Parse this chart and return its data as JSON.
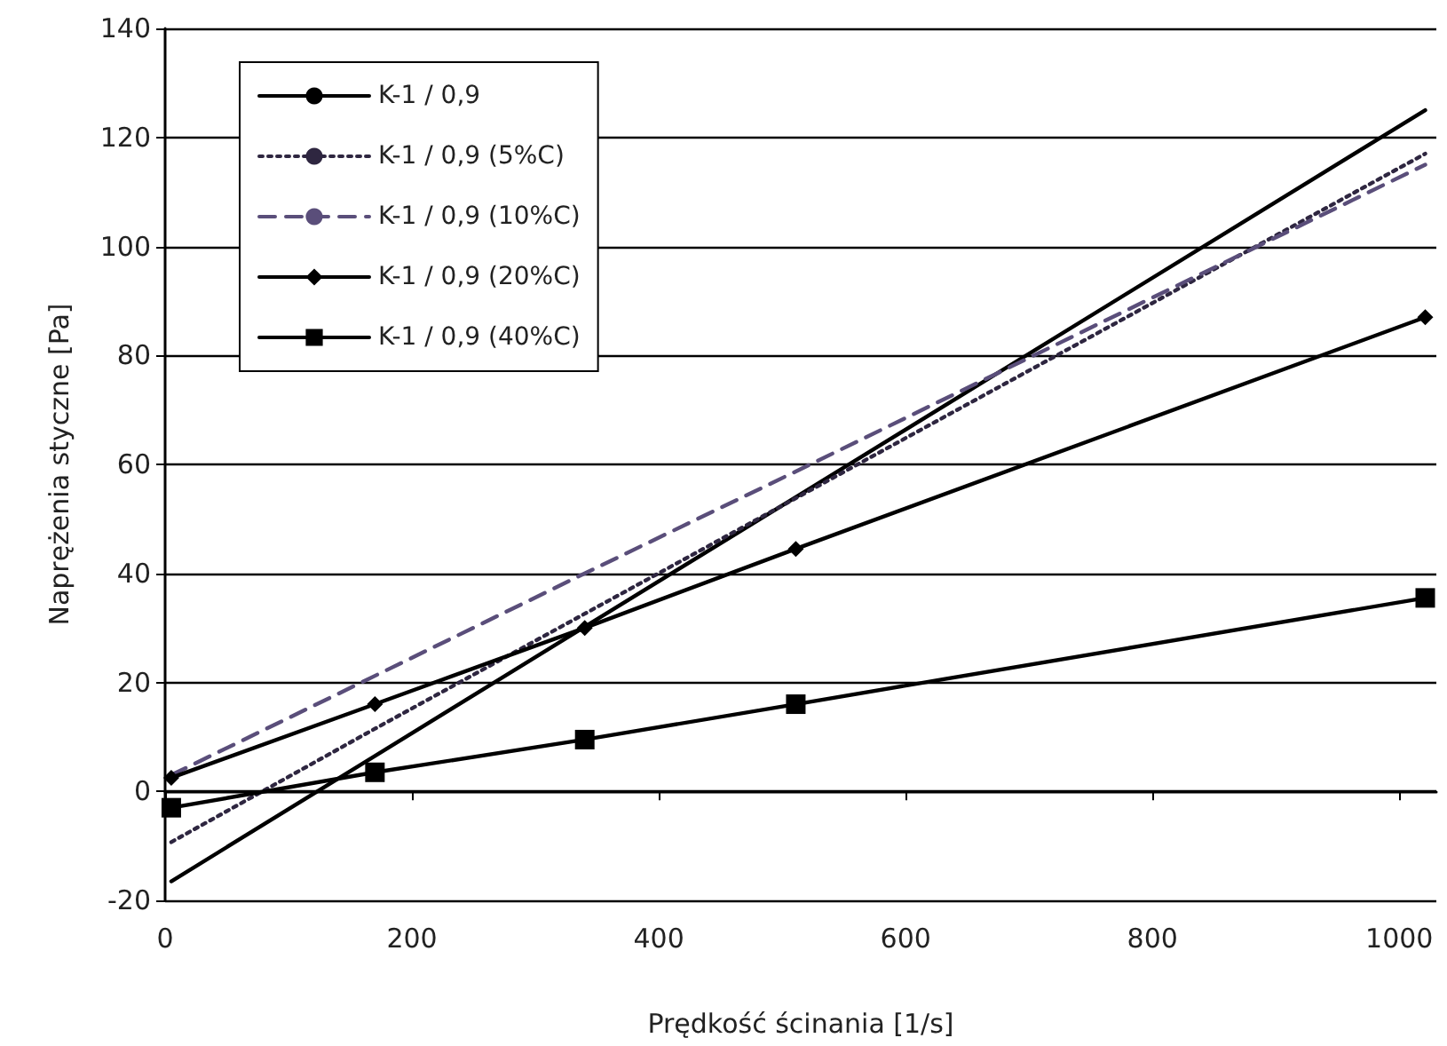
{
  "chart_data": {
    "type": "line",
    "xlabel": "Prędkość ścinania [1/s]",
    "ylabel": "Naprężenia styczne [Pa]",
    "x": [
      5,
      170,
      340,
      511,
      1021
    ],
    "series": [
      {
        "name": "K-1 / 0,9",
        "color": "#000000",
        "line_style": "solid",
        "marker": "none",
        "values": [
          -16.5,
          6.5,
          30.2,
          54,
          125
        ]
      },
      {
        "name": "K-1 / 0,9 (5%C)",
        "color": "#2e2640",
        "line_style": "dotted",
        "marker": "none",
        "values": [
          -9.3,
          11.5,
          32.6,
          53.8,
          117
        ]
      },
      {
        "name": "K-1 / 0,9 (10%C)",
        "color": "#5a4e7a",
        "line_style": "dashed",
        "marker": "none",
        "values": [
          3,
          21.2,
          40,
          58.7,
          115
        ]
      },
      {
        "name": "K-1 / 0,9 (20%C)",
        "color": "#000000",
        "line_style": "solid",
        "marker": "diamond",
        "values": [
          2.5,
          16,
          30,
          44.5,
          87
        ]
      },
      {
        "name": "K-1 / 0,9 (40%C)",
        "color": "#000000",
        "line_style": "solid",
        "marker": "square",
        "values": [
          -3,
          3.5,
          9.5,
          16,
          35.5
        ]
      }
    ],
    "xlim": [
      0,
      1030
    ],
    "xticks": [
      0,
      200,
      400,
      600,
      800,
      1000
    ],
    "ylim": [
      -20,
      140
    ],
    "yticks": [
      -20,
      0,
      20,
      40,
      60,
      80,
      100,
      120,
      140
    ],
    "grid": "y",
    "legend": "top left"
  }
}
